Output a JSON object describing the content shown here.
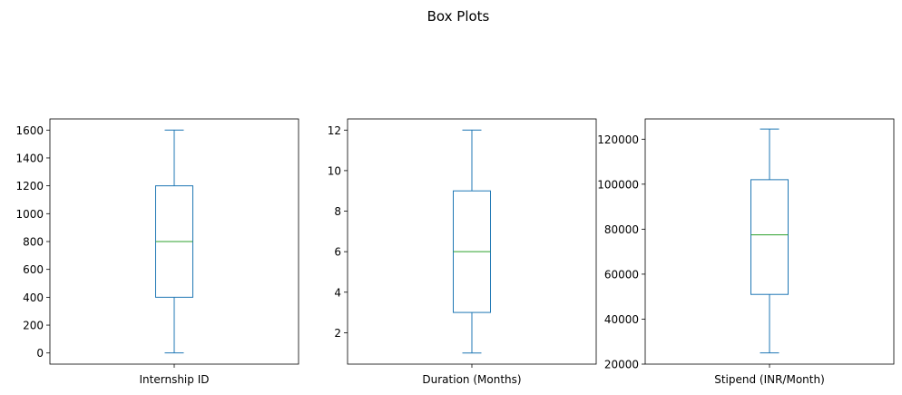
{
  "figure": {
    "suptitle": "Box Plots"
  },
  "chart_data": [
    {
      "type": "box",
      "xlabel": "Internship ID",
      "ylim": [
        -80,
        1680
      ],
      "yticks": [
        0,
        200,
        400,
        600,
        800,
        1000,
        1200,
        1400,
        1600
      ],
      "box": {
        "whisker_low": 1,
        "q1": 400,
        "median": 800,
        "q3": 1200,
        "whisker_high": 1600
      },
      "color": "#1f77b4",
      "median_color": "#2ca02c"
    },
    {
      "type": "box",
      "xlabel": "Duration (Months)",
      "ylim": [
        0.45,
        12.55
      ],
      "yticks": [
        2,
        4,
        6,
        8,
        10,
        12
      ],
      "box": {
        "whisker_low": 1,
        "q1": 3,
        "median": 6,
        "q3": 9,
        "whisker_high": 12
      },
      "color": "#1f77b4",
      "median_color": "#2ca02c"
    },
    {
      "type": "box",
      "xlabel": "Stipend (INR/Month)",
      "ylim": [
        20000,
        129000
      ],
      "yticks": [
        20000,
        40000,
        60000,
        80000,
        100000,
        120000
      ],
      "box": {
        "whisker_low": 25000,
        "q1": 51000,
        "median": 77500,
        "q3": 102000,
        "whisker_high": 124500
      },
      "color": "#1f77b4",
      "median_color": "#2ca02c"
    }
  ]
}
